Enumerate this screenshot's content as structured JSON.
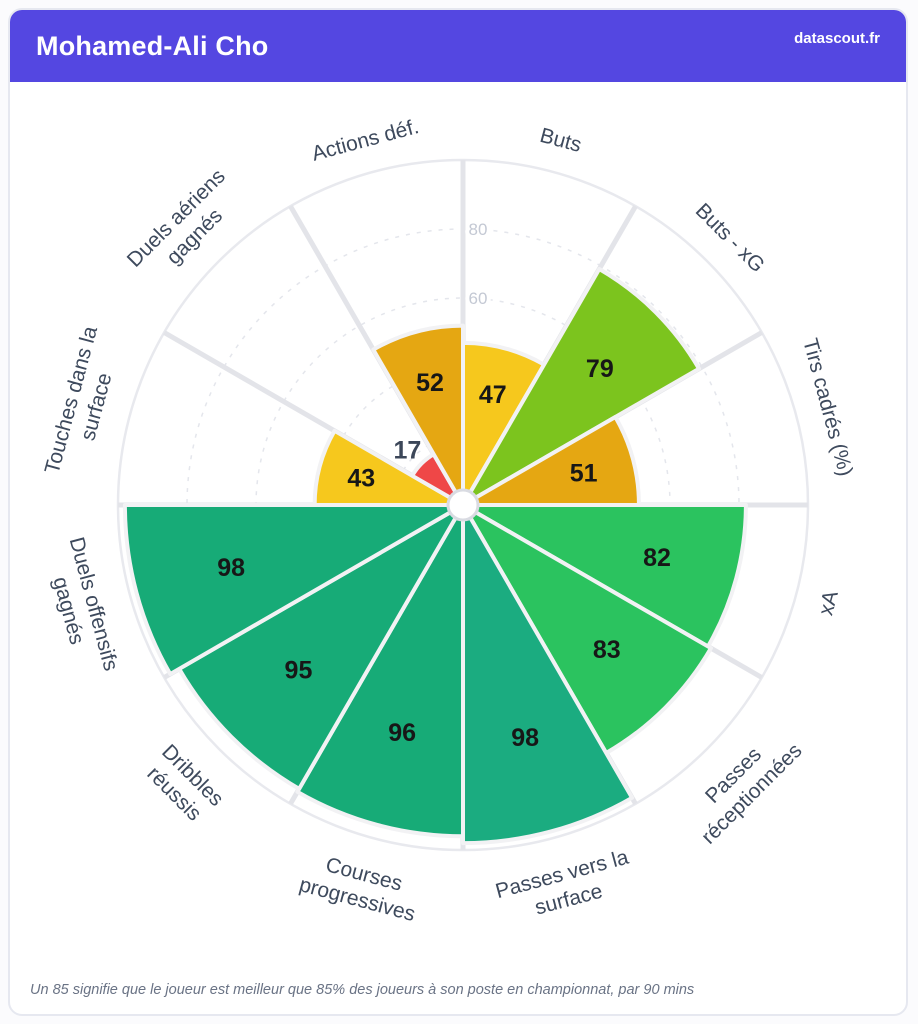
{
  "header": {
    "title": "Mohamed-Ali Cho",
    "brand": "datascout.fr"
  },
  "footer": {
    "note": "Un 85 signifie que le joueur est meilleur que 85% des joueurs à son poste en championnat, par 90 mins"
  },
  "theme": {
    "accent": "#5447e1",
    "card_border": "#e6e8f0",
    "category_label_color": "#3e4a5d",
    "tick_label_color": "#c4c9d4",
    "value_label_color": "#171717",
    "outside_value_label_color": "#3c4759",
    "grid_color": "#e4e6ec",
    "spoke_color": "#e3e4e9",
    "center_dot_border": "#d9dbe2"
  },
  "chart_data": {
    "type": "polar-bar",
    "orientation": "clockwise-from-top",
    "slice_angle_deg": 30,
    "ylim": [
      0,
      100
    ],
    "grid_ticks": [
      20,
      40,
      60,
      80
    ],
    "visible_tick_labels": [
      60,
      80
    ],
    "categories": [
      "Buts",
      "Buts - xG",
      "Tirs cadrés (%)",
      "xA",
      "Passes réceptionnées",
      "Passes vers la surface",
      "Courses progressives",
      "Dribbles réussis",
      "Duels offensifs gagnés",
      "Touches dans la surface",
      "Duels aériens gagnés",
      "Actions déf."
    ],
    "label_lines": [
      [
        "Buts"
      ],
      [
        "Buts - xG"
      ],
      [
        "Tirs cadrés (%)"
      ],
      [
        "xA"
      ],
      [
        "Passes",
        "réceptionnées"
      ],
      [
        "Passes vers la",
        "surface"
      ],
      [
        "Courses",
        "progressives"
      ],
      [
        "Dribbles",
        "réussis"
      ],
      [
        "Duels offensifs",
        "gagnés"
      ],
      [
        "Touches dans la",
        "surface"
      ],
      [
        "Duels aériens",
        "gagnés"
      ],
      [
        "Actions déf."
      ]
    ],
    "values": [
      47,
      79,
      51,
      82,
      83,
      98,
      96,
      95,
      98,
      43,
      17,
      52
    ],
    "colors": [
      "#f6c81d",
      "#7cc41e",
      "#e5a712",
      "#2bc35f",
      "#2bc35f",
      "#1bac80",
      "#17ab77",
      "#17ab77",
      "#17ab77",
      "#f6c81d",
      "#ef4747",
      "#e5a712"
    ]
  }
}
